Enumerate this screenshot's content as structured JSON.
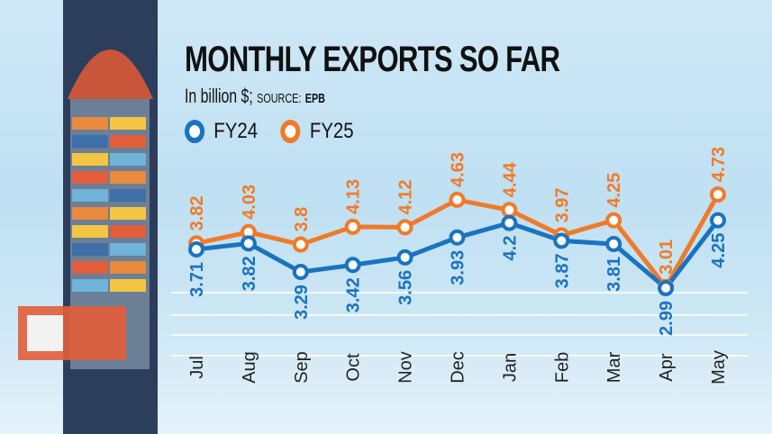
{
  "chart_data": {
    "type": "line",
    "title": "MONTHLY EXPORTS SO FAR",
    "subtitle": "In billion $;",
    "source_label": "SOURCE:",
    "source": "EPB",
    "categories": [
      "Jul",
      "Aug",
      "Sep",
      "Oct",
      "Nov",
      "Dec",
      "Jan",
      "Feb",
      "Mar",
      "Apr",
      "May"
    ],
    "series": [
      {
        "name": "FY24",
        "color": "#1a73c0",
        "values": [
          3.71,
          3.82,
          3.29,
          3.42,
          3.56,
          3.93,
          4.2,
          3.87,
          3.81,
          2.99,
          4.25
        ]
      },
      {
        "name": "FY25",
        "color": "#f07a2a",
        "values": [
          3.82,
          4.03,
          3.8,
          4.13,
          4.12,
          4.63,
          4.44,
          3.97,
          4.25,
          3.01,
          4.73
        ]
      }
    ],
    "legend": "top-left",
    "grid": false
  }
}
